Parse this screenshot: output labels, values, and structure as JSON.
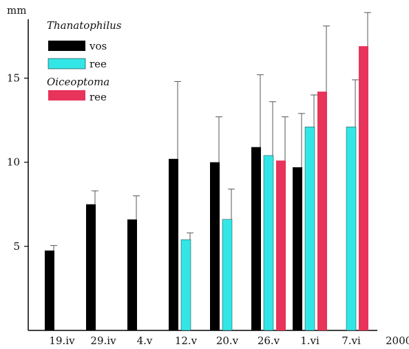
{
  "chart_data": {
    "type": "bar",
    "ylabel": "mm",
    "xlabel": "2000",
    "ylim": [
      0,
      18.5
    ],
    "yticks": [
      5,
      10,
      15
    ],
    "categories": [
      "19.iv",
      "29.iv",
      "4.v",
      "12.v",
      "20.v",
      "26.v",
      "1.vi",
      "7.vi"
    ],
    "legend": {
      "position": "top-left",
      "groups": [
        {
          "title": "Thanatophilus",
          "entries": [
            {
              "label": "vos",
              "color": "#000000"
            },
            {
              "label": "ree",
              "color": "#33e6e6"
            }
          ]
        },
        {
          "title": "Oiceoptoma",
          "entries": [
            {
              "label": "ree",
              "color": "#e8335a"
            }
          ]
        }
      ]
    },
    "series": [
      {
        "color": "#000000",
        "values": [
          4.75,
          7.5,
          6.6,
          10.2,
          10.0,
          10.9,
          9.7,
          null
        ],
        "errors": [
          0.3,
          0.8,
          1.4,
          4.6,
          2.7,
          4.3,
          3.2,
          null
        ]
      },
      {
        "color": "#33e6e6",
        "values": [
          null,
          null,
          null,
          5.4,
          6.6,
          10.4,
          12.1,
          12.1
        ],
        "errors": [
          null,
          null,
          null,
          0.4,
          1.8,
          3.2,
          1.9,
          2.8
        ]
      },
      {
        "color": "#e8335a",
        "values": [
          null,
          null,
          null,
          null,
          null,
          10.1,
          14.2,
          16.9
        ],
        "errors": [
          null,
          null,
          null,
          null,
          null,
          2.6,
          3.9,
          2.0
        ]
      }
    ]
  }
}
